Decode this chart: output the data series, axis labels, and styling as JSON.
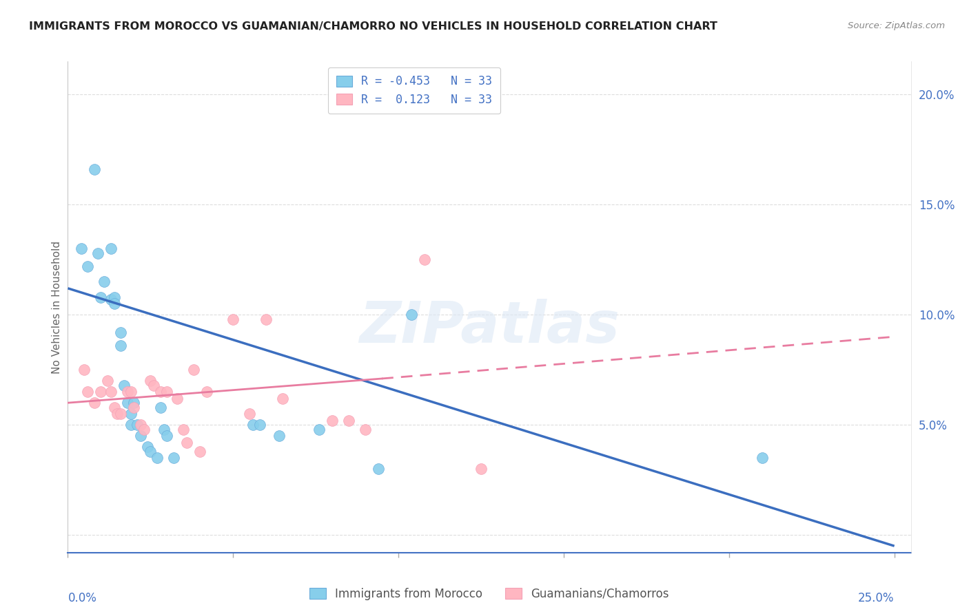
{
  "title": "IMMIGRANTS FROM MOROCCO VS GUAMANIAN/CHAMORRO NO VEHICLES IN HOUSEHOLD CORRELATION CHART",
  "source": "Source: ZipAtlas.com",
  "ylabel": "No Vehicles in Household",
  "xlim": [
    0.0,
    0.255
  ],
  "ylim": [
    -0.008,
    0.215
  ],
  "yticks": [
    0.0,
    0.05,
    0.1,
    0.15,
    0.2
  ],
  "ytick_labels": [
    "",
    "5.0%",
    "10.0%",
    "15.0%",
    "20.0%"
  ],
  "xtick_positions": [
    0.0,
    0.05,
    0.1,
    0.15,
    0.2,
    0.25
  ],
  "legend_r_blue": "R = -0.453",
  "legend_n_blue": "N = 33",
  "legend_r_pink": "R =  0.123",
  "legend_n_pink": "N = 33",
  "blue_dot_color": "#87CEEB",
  "blue_dot_edge": "#6AABDA",
  "pink_dot_color": "#FFB6C1",
  "pink_dot_edge": "#F4A0B5",
  "blue_line_color": "#3B6EBF",
  "pink_line_color": "#E87CA0",
  "watermark": "ZIPatlas",
  "blue_dots_x": [
    0.004,
    0.006,
    0.008,
    0.009,
    0.01,
    0.011,
    0.013,
    0.013,
    0.014,
    0.014,
    0.016,
    0.016,
    0.017,
    0.018,
    0.019,
    0.019,
    0.02,
    0.021,
    0.022,
    0.024,
    0.025,
    0.027,
    0.028,
    0.029,
    0.03,
    0.032,
    0.056,
    0.058,
    0.064,
    0.076,
    0.104,
    0.21,
    0.094
  ],
  "blue_dots_y": [
    0.13,
    0.122,
    0.166,
    0.128,
    0.108,
    0.115,
    0.13,
    0.107,
    0.108,
    0.105,
    0.086,
    0.092,
    0.068,
    0.06,
    0.055,
    0.05,
    0.06,
    0.05,
    0.045,
    0.04,
    0.038,
    0.035,
    0.058,
    0.048,
    0.045,
    0.035,
    0.05,
    0.05,
    0.045,
    0.048,
    0.1,
    0.035,
    0.03
  ],
  "pink_dots_x": [
    0.005,
    0.006,
    0.008,
    0.01,
    0.012,
    0.013,
    0.014,
    0.015,
    0.016,
    0.018,
    0.019,
    0.02,
    0.022,
    0.023,
    0.025,
    0.026,
    0.028,
    0.03,
    0.033,
    0.035,
    0.036,
    0.038,
    0.04,
    0.042,
    0.05,
    0.055,
    0.06,
    0.065,
    0.08,
    0.085,
    0.09,
    0.108,
    0.125
  ],
  "pink_dots_y": [
    0.075,
    0.065,
    0.06,
    0.065,
    0.07,
    0.065,
    0.058,
    0.055,
    0.055,
    0.065,
    0.065,
    0.058,
    0.05,
    0.048,
    0.07,
    0.068,
    0.065,
    0.065,
    0.062,
    0.048,
    0.042,
    0.075,
    0.038,
    0.065,
    0.098,
    0.055,
    0.098,
    0.062,
    0.052,
    0.052,
    0.048,
    0.125,
    0.03
  ],
  "blue_trend_x0": 0.0,
  "blue_trend_y0": 0.112,
  "blue_trend_x1": 0.25,
  "blue_trend_y1": -0.005,
  "pink_trend_x0": 0.0,
  "pink_trend_y0": 0.06,
  "pink_trend_x_break": 0.095,
  "pink_trend_y_break": 0.071,
  "pink_trend_x1": 0.25,
  "pink_trend_y1": 0.09
}
